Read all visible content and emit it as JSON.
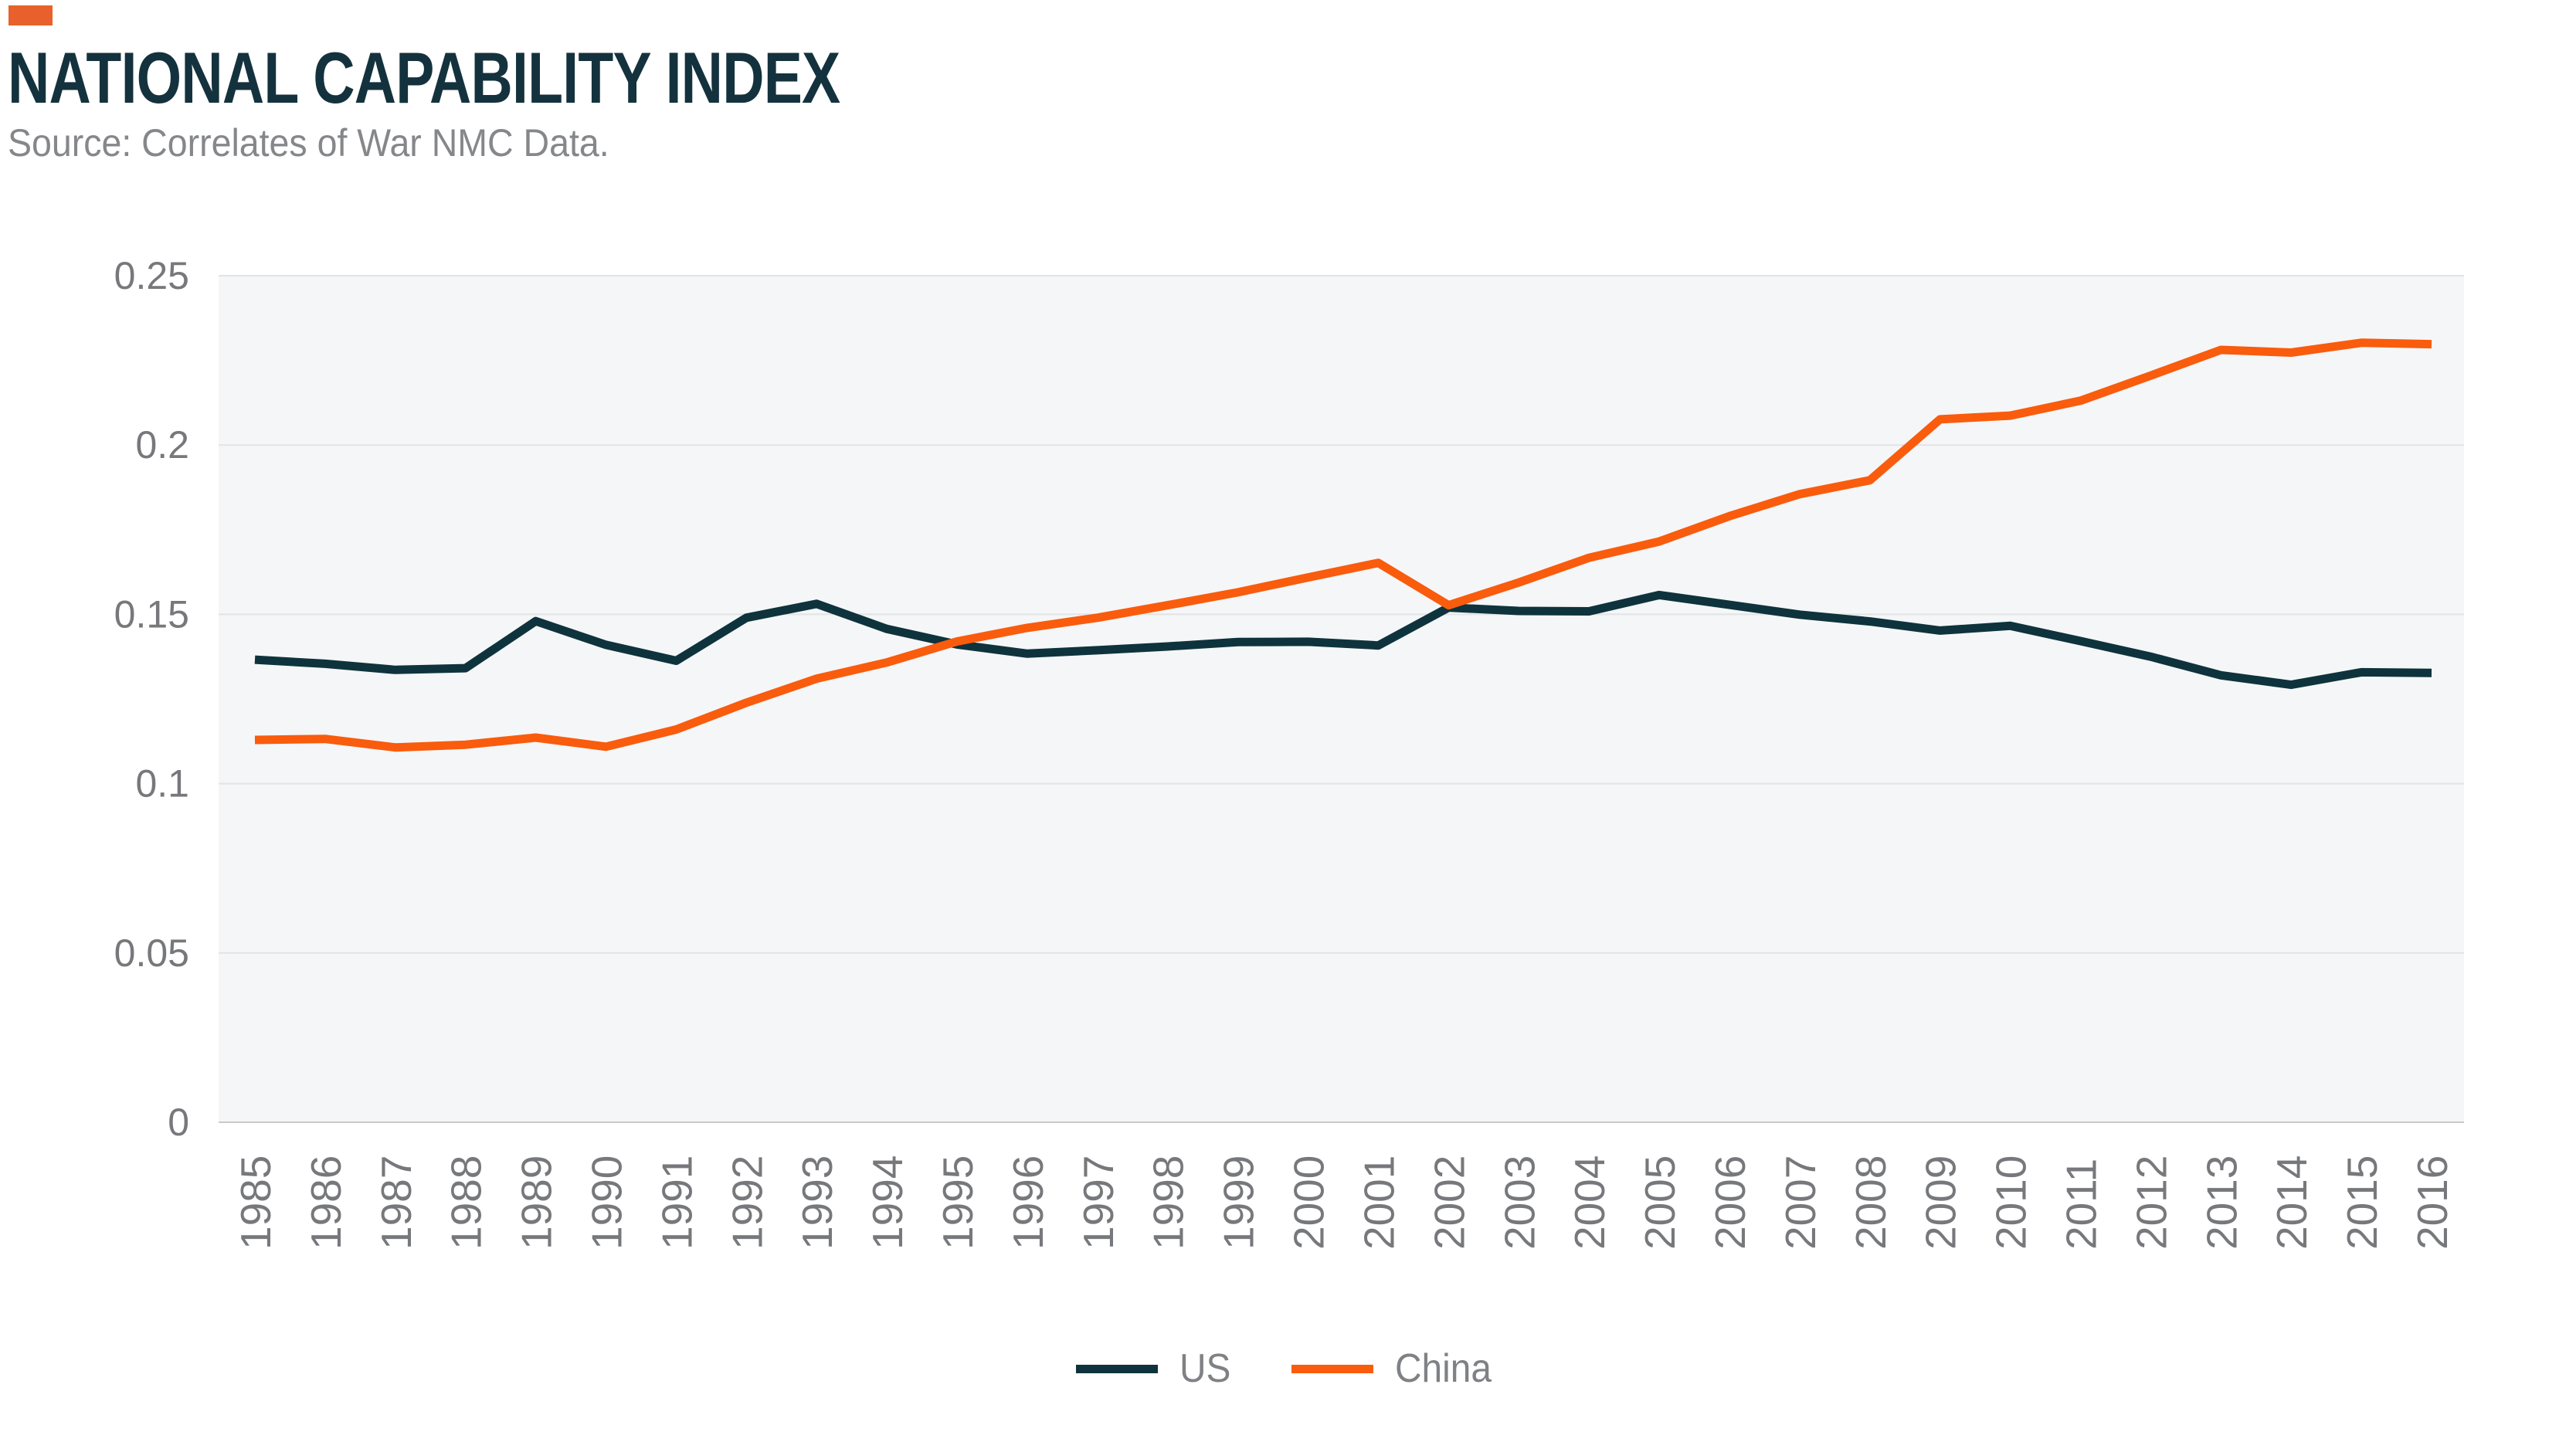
{
  "header": {
    "title": "NATIONAL CAPABILITY INDEX",
    "source": "Source: Correlates of War NMC Data."
  },
  "colors": {
    "logo_square": "#E8612C",
    "title_text": "#14323E",
    "source_text": "#85878A",
    "plot_background": "#F5F6F8",
    "gridline": "#E2E3E5",
    "axis_line": "#C8C9CA",
    "tick_text": "#77787B",
    "legend_text": "#7F8184",
    "us_line": "#0E333D",
    "china_line": "#F95C0D"
  },
  "legend": {
    "items": [
      {
        "label": "US",
        "color": "#0E333D"
      },
      {
        "label": "China",
        "color": "#F95C0D"
      }
    ]
  },
  "chart_data": {
    "type": "line",
    "title": "NATIONAL CAPABILITY INDEX",
    "xlabel": "",
    "ylabel": "",
    "x": [
      1985,
      1986,
      1987,
      1988,
      1989,
      1990,
      1991,
      1992,
      1993,
      1994,
      1995,
      1996,
      1997,
      1998,
      1999,
      2000,
      2001,
      2002,
      2003,
      2004,
      2005,
      2006,
      2007,
      2008,
      2009,
      2010,
      2011,
      2012,
      2013,
      2014,
      2015,
      2016
    ],
    "series": [
      {
        "name": "US",
        "color": "#0E333D",
        "values": [
          0.1366,
          0.1354,
          0.1336,
          0.1341,
          0.148,
          0.141,
          0.1363,
          0.149,
          0.1531,
          0.1457,
          0.1411,
          0.1384,
          0.1394,
          0.1405,
          0.1418,
          0.1419,
          0.1408,
          0.152,
          0.151,
          0.1509,
          0.1557,
          0.1528,
          0.1499,
          0.1479,
          0.1452,
          0.1466,
          0.1421,
          0.1375,
          0.132,
          0.1292,
          0.1329,
          0.1327
        ]
      },
      {
        "name": "China",
        "color": "#F95C0D",
        "values": [
          0.1129,
          0.1132,
          0.1107,
          0.1115,
          0.1136,
          0.1109,
          0.116,
          0.1239,
          0.131,
          0.1358,
          0.142,
          0.146,
          0.149,
          0.1527,
          0.1565,
          0.1609,
          0.1652,
          0.1527,
          0.1594,
          0.1667,
          0.1715,
          0.179,
          0.1855,
          0.1896,
          0.2076,
          0.2087,
          0.2131,
          0.2205,
          0.2281,
          0.2273,
          0.2302,
          0.2298
        ]
      }
    ],
    "ylim": [
      0,
      0.25
    ],
    "yticks": [
      0,
      0.05,
      0.1,
      0.15,
      0.2,
      0.25
    ],
    "ytick_labels": [
      "0",
      "0.05",
      "0.1",
      "0.15",
      "0.2",
      "0.25"
    ],
    "grid": true,
    "legend_position": "bottom"
  }
}
